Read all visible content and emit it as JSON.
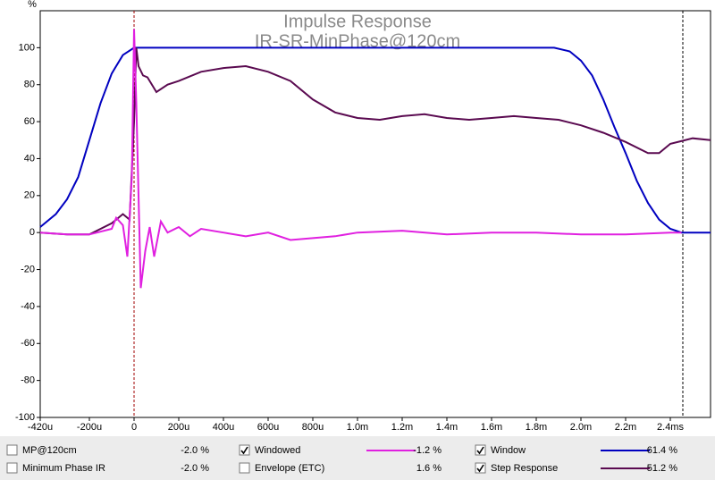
{
  "chart_data": {
    "type": "line",
    "title": "Impulse Response",
    "subtitle": "IR-SR-MinPhase@120cm",
    "y_label": "%",
    "xlim": [
      -0.42,
      2.58
    ],
    "ylim": [
      -100,
      120
    ],
    "xticks": [
      {
        "value": -0.42,
        "label": "-420u"
      },
      {
        "value": -0.2,
        "label": "-200u"
      },
      0,
      {
        "value": 0.2,
        "label": "200u"
      },
      {
        "value": 0.4,
        "label": "400u"
      },
      {
        "value": 0.6,
        "label": "600u"
      },
      {
        "value": 0.8,
        "label": "800u"
      },
      {
        "value": 1.0,
        "label": "1.0m"
      },
      {
        "value": 1.2,
        "label": "1.2m"
      },
      {
        "value": 1.4,
        "label": "1.4m"
      },
      {
        "value": 1.6,
        "label": "1.6m"
      },
      {
        "value": 1.8,
        "label": "1.8m"
      },
      {
        "value": 2.0,
        "label": "2.0m"
      },
      {
        "value": 2.2,
        "label": "2.2m"
      },
      {
        "value": 2.4,
        "label": "2.4ms"
      }
    ],
    "yticks": [
      -100,
      -80,
      -60,
      -40,
      -20,
      0,
      20,
      40,
      60,
      80,
      100
    ],
    "grid": false,
    "vlines": [
      {
        "value": 0,
        "color": "#a00000"
      },
      {
        "value": 2.456,
        "color": "#000000"
      }
    ],
    "series": [
      {
        "name": "Window",
        "color": "#0000c0",
        "x": [
          -0.42,
          -0.35,
          -0.3,
          -0.25,
          -0.2,
          -0.15,
          -0.1,
          -0.05,
          0,
          1.88,
          1.95,
          2.0,
          2.05,
          2.1,
          2.15,
          2.2,
          2.25,
          2.3,
          2.35,
          2.4,
          2.45,
          2.58
        ],
        "values": [
          3,
          10,
          18,
          30,
          50,
          70,
          86,
          96,
          100,
          100,
          98,
          93,
          85,
          72,
          57,
          43,
          28,
          16,
          7,
          2,
          0,
          0
        ]
      },
      {
        "name": "Step Response",
        "color": "#5a0a50",
        "x": [
          -0.42,
          -0.3,
          -0.2,
          -0.1,
          -0.05,
          -0.02,
          0,
          0.01,
          0.02,
          0.04,
          0.06,
          0.1,
          0.15,
          0.2,
          0.3,
          0.4,
          0.5,
          0.6,
          0.7,
          0.8,
          0.9,
          1.0,
          1.1,
          1.2,
          1.3,
          1.4,
          1.5,
          1.6,
          1.7,
          1.8,
          1.9,
          2.0,
          2.1,
          2.2,
          2.3,
          2.35,
          2.4,
          2.5,
          2.58
        ],
        "values": [
          0,
          -1,
          -1,
          5,
          10,
          7,
          60,
          100,
          90,
          85,
          84,
          76,
          80,
          82,
          87,
          89,
          90,
          87,
          82,
          72,
          65,
          62,
          61,
          63,
          64,
          62,
          61,
          62,
          63,
          62,
          61,
          58,
          54,
          49,
          43,
          43,
          48,
          51,
          50
        ]
      },
      {
        "name": "Windowed",
        "color": "#e020e0",
        "x": [
          -0.42,
          -0.3,
          -0.2,
          -0.1,
          -0.08,
          -0.05,
          -0.03,
          -0.01,
          0,
          0.01,
          0.03,
          0.05,
          0.07,
          0.09,
          0.12,
          0.15,
          0.2,
          0.25,
          0.3,
          0.4,
          0.5,
          0.6,
          0.7,
          0.8,
          0.9,
          1.0,
          1.2,
          1.4,
          1.6,
          1.8,
          2.0,
          2.2,
          2.4,
          2.45
        ],
        "values": [
          0,
          -1,
          -1,
          2,
          8,
          4,
          -13,
          30,
          110,
          70,
          -30,
          -10,
          3,
          -13,
          6,
          0,
          3,
          -2,
          2,
          0,
          -2,
          0,
          -4,
          -3,
          -2,
          0,
          1,
          -1,
          0,
          0,
          -1,
          -1,
          0,
          0
        ]
      }
    ]
  },
  "panel": {
    "rows": [
      {
        "name": "MP@120cm",
        "color": "#d020d0",
        "checked": false,
        "swatch": false,
        "readout": "-2.0 %",
        "column": 0,
        "row": 0
      },
      {
        "name": "Minimum Phase IR",
        "color": "#909090",
        "checked": false,
        "swatch": false,
        "readout": "-2.0 %",
        "column": 0,
        "row": 1
      },
      {
        "name": "Windowed",
        "color": "#e020e0",
        "checked": true,
        "swatch": true,
        "readout": "-1.2 %",
        "column": 1,
        "row": 0
      },
      {
        "name": "Envelope (ETC)",
        "color": "#7a2a90",
        "checked": false,
        "swatch": false,
        "readout": "1.6 %",
        "column": 1,
        "row": 1
      },
      {
        "name": "Window",
        "color": "#0000c0",
        "checked": true,
        "swatch": true,
        "readout": "61.4 %",
        "column": 2,
        "row": 0
      },
      {
        "name": "Step Response",
        "color": "#5a0a50",
        "checked": true,
        "swatch": true,
        "readout": "51.2 %",
        "column": 2,
        "row": 1
      }
    ]
  }
}
